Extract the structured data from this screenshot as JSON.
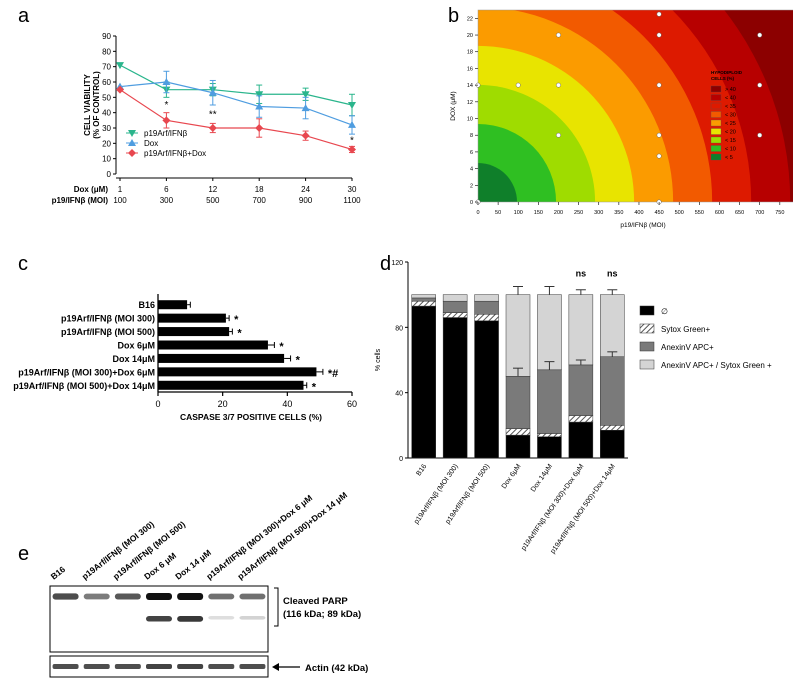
{
  "chart_data": [
    {
      "panel": "a",
      "type": "line",
      "ylabel_line1": "CELL VIABILITY",
      "ylabel_line2": "(% OF CONTROL)",
      "ylim": [
        0,
        90
      ],
      "y_ticks": [
        0,
        10,
        20,
        30,
        40,
        50,
        60,
        70,
        80,
        90
      ],
      "x_row1_label": "Dox (μM)",
      "x_row2_label": "p19/IFNβ (MOI)",
      "x_row1": [
        "1",
        "6",
        "12",
        "18",
        "24",
        "30"
      ],
      "x_row2": [
        "100",
        "300",
        "500",
        "700",
        "900",
        "1100"
      ],
      "series": [
        {
          "name": "p19Arf/IFNβ",
          "color": "#2ab58c",
          "marker": "triangle-down",
          "values": [
            71,
            55,
            55,
            52,
            52,
            45
          ],
          "errors": [
            0,
            5,
            4,
            6,
            4,
            7
          ]
        },
        {
          "name": "Dox",
          "color": "#4f9de0",
          "marker": "triangle-up",
          "values": [
            57,
            60,
            53,
            44,
            43,
            32
          ],
          "errors": [
            0,
            7,
            8,
            7,
            7,
            6
          ]
        },
        {
          "name": "p19Arf/IFNβ+Dox",
          "color": "#e8474f",
          "marker": "diamond",
          "values": [
            55,
            35,
            30,
            30,
            25,
            16
          ],
          "errors": [
            0,
            5,
            3,
            6,
            3,
            2
          ]
        }
      ],
      "annotations": [
        {
          "x_index": 1,
          "text": "*",
          "y": 43
        },
        {
          "x_index": 2,
          "text": "**",
          "y": 37
        },
        {
          "x_index": 5,
          "text": "*",
          "y": 20
        }
      ]
    },
    {
      "panel": "b",
      "type": "heatmap",
      "xlabel": "p19/IFNβ (MOI)",
      "ylabel": "DOX (μM)",
      "xlim": [
        0,
        820
      ],
      "ylim": [
        0,
        23
      ],
      "x_ticks": [
        0,
        50,
        100,
        150,
        200,
        250,
        300,
        350,
        400,
        450,
        500,
        550,
        600,
        650,
        700,
        750,
        800
      ],
      "y_ticks": [
        0,
        2,
        4,
        6,
        8,
        10,
        12,
        14,
        16,
        18,
        20,
        22
      ],
      "legend_title_line1": "HYPODIPLOID",
      "legend_title_line2": "CELLS (%)",
      "legend": [
        {
          "label": "> 40",
          "color": "#8c0000"
        },
        {
          "label": "< 40",
          "color": "#b70000"
        },
        {
          "label": "< 35",
          "color": "#dd1a00"
        },
        {
          "label": "< 30",
          "color": "#f25a00"
        },
        {
          "label": "< 25",
          "color": "#fb9b00"
        },
        {
          "label": "< 20",
          "color": "#e8e400"
        },
        {
          "label": "< 15",
          "color": "#9fdc00"
        },
        {
          "label": "< 10",
          "color": "#2fbf22"
        },
        {
          "label": "< 5",
          "color": "#0f7f2a"
        }
      ],
      "points": [
        {
          "x": 0,
          "y": 0
        },
        {
          "x": 450,
          "y": 0
        },
        {
          "x": 450,
          "y": 5.5
        },
        {
          "x": 200,
          "y": 8
        },
        {
          "x": 450,
          "y": 8
        },
        {
          "x": 700,
          "y": 8
        },
        {
          "x": 0,
          "y": 14
        },
        {
          "x": 100,
          "y": 14
        },
        {
          "x": 200,
          "y": 14
        },
        {
          "x": 450,
          "y": 14
        },
        {
          "x": 700,
          "y": 14
        },
        {
          "x": 800,
          "y": 14
        },
        {
          "x": 200,
          "y": 20
        },
        {
          "x": 450,
          "y": 20
        },
        {
          "x": 700,
          "y": 20
        },
        {
          "x": 450,
          "y": 22.5
        }
      ]
    },
    {
      "panel": "c",
      "type": "bar",
      "orientation": "horizontal",
      "xlabel": "CASPASE 3/7 POSITIVE CELLS (%)",
      "xlim": [
        0,
        60
      ],
      "x_ticks": [
        0,
        20,
        40,
        60
      ],
      "categories": [
        "B16",
        "p19Arf/IFNβ (MOI 300)",
        "p19Arf/IFNβ (MOI 500)",
        "Dox 6μM",
        "Dox 14μM",
        "p19Arf/IFNβ (MOI 300)+Dox 6μM",
        "p19Arf/IFNβ (MOI 500)+Dox 14μM"
      ],
      "values": [
        9,
        21,
        22,
        34,
        39,
        49,
        45
      ],
      "errors": [
        1,
        1,
        1,
        2,
        2,
        2,
        1
      ],
      "significance": [
        "",
        "*",
        "*",
        "*",
        "*",
        "*#",
        "*"
      ]
    },
    {
      "panel": "d",
      "type": "bar",
      "stacked": true,
      "ylabel": "% cells",
      "ylim": [
        0,
        120
      ],
      "y_ticks": [
        0,
        40,
        80,
        120
      ],
      "categories": [
        "B16",
        "p19Arf/IFNβ (MOI 300)",
        "p19Arf/IFNβ (MOI 500)",
        "Dox 6μM",
        "Dox 14μM",
        "p19Arf/IFNβ (MOI 300)+Dox 6μM",
        "p19Arf/IFNβ (MOI 500)+Dox 14μM"
      ],
      "series": [
        {
          "name": "∅",
          "color": "#000000",
          "values": [
            93,
            86,
            84,
            14,
            13,
            22,
            17
          ]
        },
        {
          "name": "Sytox Green+",
          "color": "#bbbbbb",
          "pattern": "hatch",
          "values": [
            3,
            3,
            4,
            4,
            2,
            4,
            3
          ]
        },
        {
          "name": "AnexinV APC+",
          "color": "#7a7a7a",
          "values": [
            2,
            7,
            8,
            32,
            39,
            31,
            42
          ]
        },
        {
          "name": "AnexinV APC+ / Sytox Green +",
          "color": "#d4d4d4",
          "values": [
            2,
            4,
            4,
            50,
            46,
            43,
            38
          ]
        }
      ],
      "errors": [
        1,
        2,
        2,
        5,
        5,
        3,
        3
      ],
      "error_index": [
        0,
        0,
        0,
        2,
        2,
        2,
        2
      ],
      "top_errors": [
        0,
        0,
        0,
        5,
        5,
        3,
        3
      ],
      "annotations": [
        {
          "index": 5,
          "text": "ns"
        },
        {
          "index": 6,
          "text": "ns"
        }
      ]
    },
    {
      "panel": "e",
      "type": "western-blot",
      "lanes": [
        "B16",
        "p19Arf/IFNβ (MOI 300)",
        "p19Arf/IFNβ (MOI 500)",
        "Dox 6 μM",
        "Dox 14 μM",
        "p19Arf/IFNβ (MOI 300)+Dox 6 μM",
        "p19Arf/IFNβ (MOI 500)+Dox 14 μM"
      ],
      "label_parp_1": "Cleaved PARP",
      "label_parp_2": "(116 kDa; 89 kDa)",
      "label_actin": "Actin (42 kDa)",
      "band_116": [
        0.75,
        0.55,
        0.7,
        1.0,
        1.0,
        0.6,
        0.6
      ],
      "band_89": [
        0,
        0,
        0,
        0.85,
        0.9,
        0.15,
        0.2
      ],
      "band_actin": [
        0.8,
        0.8,
        0.8,
        0.85,
        0.85,
        0.8,
        0.8
      ]
    }
  ],
  "panels": {
    "a": "a",
    "b": "b",
    "c": "c",
    "d": "d",
    "e": "e"
  }
}
